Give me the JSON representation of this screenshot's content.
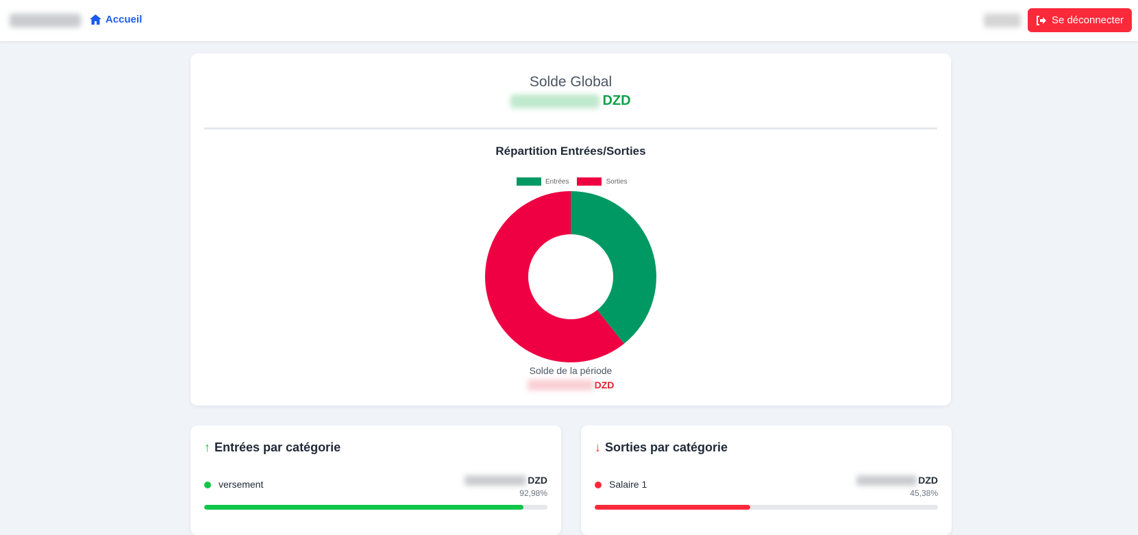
{
  "header": {
    "home_label": "Accueil",
    "logout_label": "Se déconnecter"
  },
  "global": {
    "title": "Solde Global",
    "currency": "DZD"
  },
  "chart_data": {
    "type": "pie",
    "title": "Répartition Entrées/Sorties",
    "categories": [
      "Entrées",
      "Sorties"
    ],
    "values": [
      39.3,
      60.7
    ],
    "colors": [
      "#009963",
      "#ee0042"
    ],
    "legend": "top",
    "donut": true
  },
  "period": {
    "label": "Solde de la période",
    "currency": "DZD"
  },
  "entrees": {
    "title": "Entrées par catégorie",
    "items": [
      {
        "label": "versement",
        "currency": "DZD",
        "pct": "92,98%",
        "value": 92.98,
        "color": "#0ec648"
      }
    ]
  },
  "sorties": {
    "title": "Sorties par catégorie",
    "items": [
      {
        "label": "Salaire 1",
        "currency": "DZD",
        "pct": "45,38%",
        "value": 45.38,
        "color": "#fb2a3a"
      }
    ]
  }
}
